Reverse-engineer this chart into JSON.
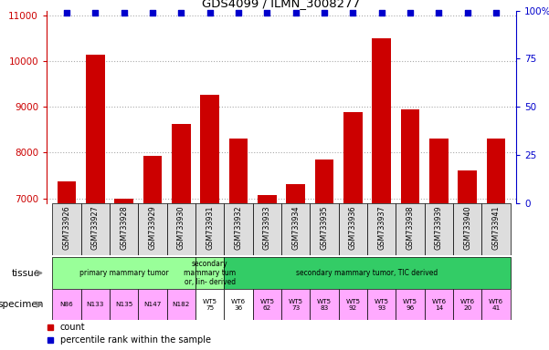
{
  "title": "GDS4099 / ILMN_3008277",
  "samples": [
    "GSM733926",
    "GSM733927",
    "GSM733928",
    "GSM733929",
    "GSM733930",
    "GSM733931",
    "GSM733932",
    "GSM733933",
    "GSM733934",
    "GSM733935",
    "GSM733936",
    "GSM733937",
    "GSM733938",
    "GSM733939",
    "GSM733940",
    "GSM733941"
  ],
  "counts": [
    7380,
    10130,
    6990,
    7930,
    8630,
    9270,
    8310,
    7070,
    7310,
    7850,
    8890,
    10490,
    8940,
    8310,
    7620,
    8310
  ],
  "ylim_left": [
    6900,
    11100
  ],
  "ylim_right": [
    0,
    100
  ],
  "yticks_left": [
    7000,
    8000,
    9000,
    10000,
    11000
  ],
  "yticks_right": [
    0,
    25,
    50,
    75,
    100
  ],
  "bar_color": "#cc0000",
  "dot_color": "#0000cc",
  "left_color": "#cc0000",
  "right_color": "#0000cc",
  "grid_color": "#aaaaaa",
  "bar_width": 0.65,
  "tissue_groups": [
    {
      "label": "primary mammary tumor",
      "cols": [
        0,
        1,
        2,
        3,
        4
      ],
      "color": "#99ff99"
    },
    {
      "label": "secondary\nmammary tum\nor, lin- derived",
      "cols": [
        5
      ],
      "color": "#99ff99"
    },
    {
      "label": "secondary mammary tumor, TIC derived",
      "cols": [
        6,
        7,
        8,
        9,
        10,
        11,
        12,
        13,
        14,
        15
      ],
      "color": "#33cc66"
    }
  ],
  "specimen_labels": [
    "N86",
    "N133",
    "N135",
    "N147",
    "N182",
    "WT5\n75",
    "WT6\n36",
    "WT5\n62",
    "WT5\n73",
    "WT5\n83",
    "WT5\n92",
    "WT5\n93",
    "WT5\n96",
    "WT6\n14",
    "WT6\n20",
    "WT6\n41"
  ],
  "specimen_colors_by_col": [
    "#ffaaff",
    "#ffaaff",
    "#ffaaff",
    "#ffaaff",
    "#ffaaff",
    "white",
    "white",
    "#ffaaff",
    "#ffaaff",
    "#ffaaff",
    "#ffaaff",
    "#ffaaff",
    "#ffaaff",
    "#ffaaff",
    "#ffaaff",
    "#ffaaff"
  ]
}
